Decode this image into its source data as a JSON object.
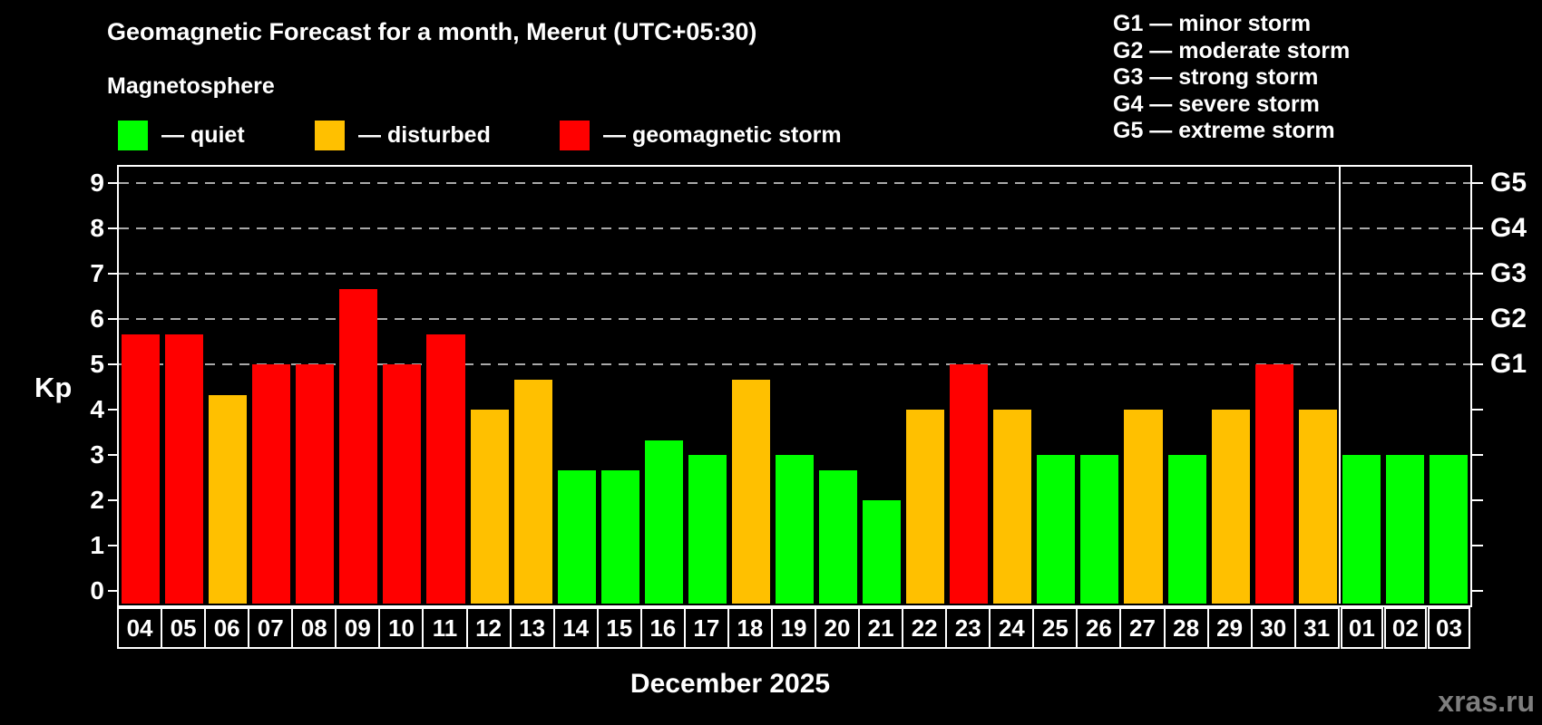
{
  "title": "Geomagnetic Forecast for a month, Meerut (UTC+05:30)",
  "subtitle": "Magnetosphere",
  "legend": {
    "quiet": {
      "label": "— quiet",
      "color": "#00ff00"
    },
    "disturbed": {
      "label": "— disturbed",
      "color": "#ffc000"
    },
    "storm": {
      "label": "— geomagnetic storm",
      "color": "#ff0000"
    }
  },
  "storm_scale_legend": {
    "g1": "G1 — minor storm",
    "g2": "G2 — moderate storm",
    "g3": "G3 — strong storm",
    "g4": "G4 — severe storm",
    "g5": "G5 — extreme storm"
  },
  "y_axis": {
    "label": "Kp",
    "ticks": [
      0,
      1,
      2,
      3,
      4,
      5,
      6,
      7,
      8,
      9
    ]
  },
  "right_axis": {
    "labels": [
      {
        "text": "G1",
        "kp": 5
      },
      {
        "text": "G2",
        "kp": 6
      },
      {
        "text": "G3",
        "kp": 7
      },
      {
        "text": "G4",
        "kp": 8
      },
      {
        "text": "G5",
        "kp": 9
      }
    ]
  },
  "x_axis_label": "December 2025",
  "watermark": "xras.ru",
  "chart_data": {
    "type": "bar",
    "title": "Geomagnetic Forecast for a month, Meerut (UTC+05:30)",
    "xlabel": "December 2025",
    "ylabel": "Kp",
    "ylim": [
      0,
      9
    ],
    "gridlines_at": [
      5,
      6,
      7,
      8,
      9
    ],
    "grid": "dashed horizontal at storm levels",
    "legend_position": "top",
    "categories": [
      "04",
      "05",
      "06",
      "07",
      "08",
      "09",
      "10",
      "11",
      "12",
      "13",
      "14",
      "15",
      "16",
      "17",
      "18",
      "19",
      "20",
      "21",
      "22",
      "23",
      "24",
      "25",
      "26",
      "27",
      "28",
      "29",
      "30",
      "31",
      "01",
      "02",
      "03"
    ],
    "values": [
      5.67,
      5.67,
      4.33,
      5.0,
      5.0,
      6.67,
      5.0,
      5.67,
      4.0,
      4.67,
      2.67,
      2.67,
      3.33,
      3.0,
      4.67,
      3.0,
      2.67,
      2.0,
      4.0,
      5.0,
      4.0,
      3.0,
      3.0,
      4.0,
      3.0,
      4.0,
      5.0,
      4.0,
      3.0,
      3.0,
      3.0
    ],
    "statuses": [
      "storm",
      "storm",
      "disturbed",
      "storm",
      "storm",
      "storm",
      "storm",
      "storm",
      "disturbed",
      "disturbed",
      "quiet",
      "quiet",
      "quiet",
      "quiet",
      "disturbed",
      "quiet",
      "quiet",
      "quiet",
      "disturbed",
      "storm",
      "disturbed",
      "quiet",
      "quiet",
      "disturbed",
      "quiet",
      "disturbed",
      "storm",
      "disturbed",
      "quiet",
      "quiet",
      "quiet"
    ],
    "status_colors": {
      "quiet": "#00ff00",
      "disturbed": "#ffc000",
      "storm": "#ff0000"
    },
    "month_separator_after_index": 27
  }
}
